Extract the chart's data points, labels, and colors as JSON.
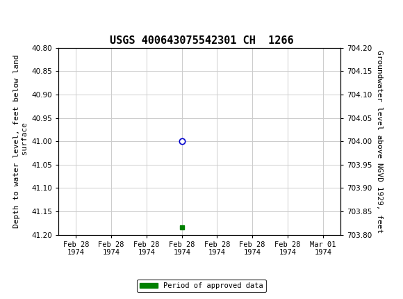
{
  "title": "USGS 400643075542301 CH  1266",
  "ylabel_left": "Depth to water level, feet below land\n surface",
  "ylabel_right": "Groundwater level above NGVD 1929, feet",
  "ylim_left": [
    40.8,
    41.2
  ],
  "ylim_right": [
    703.8,
    704.2
  ],
  "yticks_left": [
    40.8,
    40.85,
    40.9,
    40.95,
    41.0,
    41.05,
    41.1,
    41.15,
    41.2
  ],
  "yticks_right": [
    704.2,
    704.15,
    704.1,
    704.05,
    704.0,
    703.95,
    703.9,
    703.85,
    703.8
  ],
  "data_point_y": 41.0,
  "green_square_y": 41.185,
  "header_color": "#006644",
  "background_color": "#ffffff",
  "grid_color": "#cccccc",
  "data_point_color": "#0000cc",
  "green_color": "#008000",
  "legend_label": "Period of approved data",
  "font_family": "monospace",
  "title_fontsize": 11,
  "tick_fontsize": 7.5,
  "axis_label_fontsize": 8,
  "x_ticks": [
    0,
    1,
    2,
    3,
    4,
    5,
    6,
    7
  ],
  "x_tick_labels": [
    "Feb 28\n1974",
    "Feb 28\n1974",
    "Feb 28\n1974",
    "Feb 28\n1974",
    "Feb 28\n1974",
    "Feb 28\n1974",
    "Feb 28\n1974",
    "Mar 01\n1974"
  ],
  "data_x": 3,
  "green_x": 3
}
